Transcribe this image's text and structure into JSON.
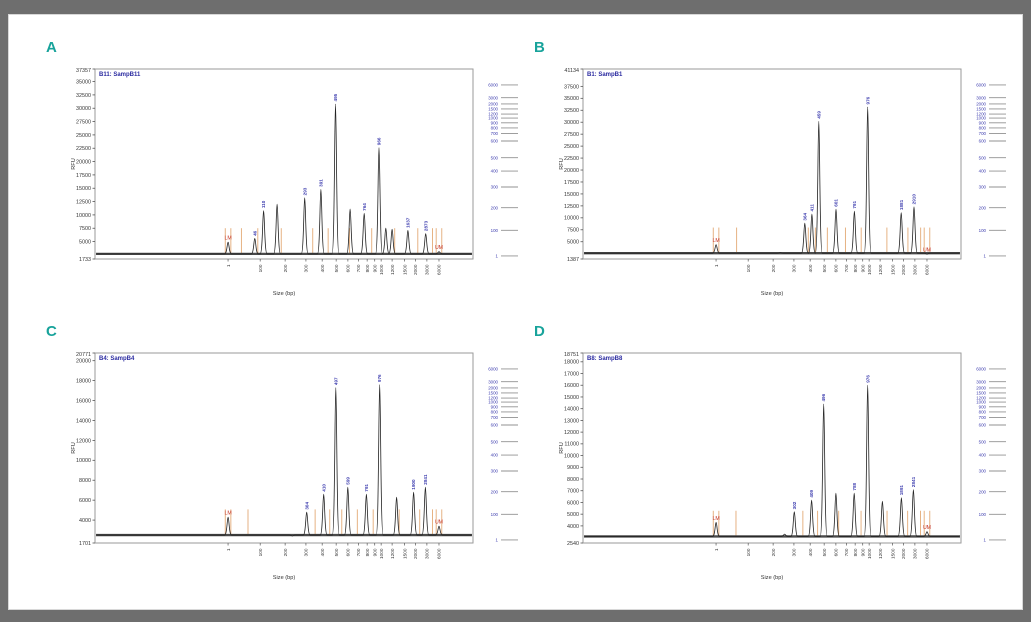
{
  "colors": {
    "frame": "#6e6e6e",
    "card_bg": "#ffffff",
    "panel_letter": "#18a39b",
    "title": "#2a2aa0",
    "peak_label": "#4040b0",
    "marker_label": "#c43425",
    "marker_line": "#e3aa76",
    "trace": "#232323",
    "baseline": "#4a4a4a",
    "plot_border": "#9a9a9a",
    "tick_text": "#333333",
    "ladder_label": "#4040b0",
    "ladder_line": "#909090",
    "band_color": "#1f1f1f"
  },
  "axes": {
    "x_label": "Size (bp)",
    "y_label": "RFU",
    "x_ticks": [
      1,
      100,
      200,
      300,
      400,
      500,
      600,
      700,
      800,
      900,
      1000,
      1200,
      1500,
      2000,
      3000,
      6000
    ]
  },
  "ladder": {
    "sizes": [
      6000,
      3000,
      2000,
      1500,
      1200,
      1000,
      900,
      800,
      700,
      600,
      500,
      400,
      300,
      200,
      100,
      1
    ]
  },
  "chart_data": [
    {
      "type": "line",
      "panel_letter": "A",
      "title": "B11: SampB11",
      "xlabel": "Size (bp)",
      "ylabel": "RFU",
      "ylim": [
        1733,
        37357
      ],
      "y_top_label": 37357,
      "y_bottom_label": 1733,
      "y_ticks": [
        35000,
        32500,
        30000,
        27500,
        25000,
        22500,
        20000,
        17500,
        15000,
        12500,
        10000,
        7500,
        5000
      ],
      "baseline_rfu": 2700,
      "lower_marker": {
        "label": "LM",
        "size": 1,
        "rfu": 4900
      },
      "upper_marker": {
        "label": "UM",
        "size": 6000,
        "rfu": 3100
      },
      "peaks": [
        {
          "size": 46,
          "label": "46",
          "rfu": 5600
        },
        {
          "size": 110,
          "label": "110",
          "rfu": 10800
        },
        {
          "size": 160,
          "label": "",
          "rfu": 12000
        },
        {
          "size": 293,
          "label": "293",
          "rfu": 13200
        },
        {
          "size": 391,
          "label": "391",
          "rfu": 14800
        },
        {
          "size": 495,
          "label": "495",
          "rfu": 30800
        },
        {
          "size": 620,
          "label": "",
          "rfu": 11100
        },
        {
          "size": 764,
          "label": "764",
          "rfu": 10300
        },
        {
          "size": 966,
          "label": "966",
          "rfu": 22600
        },
        {
          "size": 1080,
          "label": "",
          "rfu": 7500
        },
        {
          "size": 1200,
          "label": "",
          "rfu": 7300
        },
        {
          "size": 1637,
          "label": "1637",
          "rfu": 7100
        },
        {
          "size": 2873,
          "label": "2873",
          "rfu": 6500
        }
      ]
    },
    {
      "type": "line",
      "panel_letter": "B",
      "title": "B1: SampB1",
      "xlabel": "Size (bp)",
      "ylabel": "RFU",
      "ylim": [
        1387,
        41134
      ],
      "y_top_label": 41134,
      "y_bottom_label": 1387,
      "y_ticks": [
        37500,
        35000,
        32500,
        30000,
        27500,
        25000,
        22500,
        20000,
        17500,
        15000,
        12500,
        10000,
        7500,
        5000
      ],
      "baseline_rfu": 2600,
      "lower_marker": {
        "label": "LM",
        "size": 1,
        "rfu": 4400
      },
      "upper_marker": {
        "label": "UM",
        "size": 6000,
        "rfu": 2400
      },
      "peaks": [
        {
          "size": 230,
          "label": "",
          "rfu": 2700
        },
        {
          "size": 364,
          "label": "364",
          "rfu": 8900
        },
        {
          "size": 411,
          "label": "411",
          "rfu": 10800
        },
        {
          "size": 459,
          "label": "459",
          "rfu": 30200
        },
        {
          "size": 601,
          "label": "601",
          "rfu": 11800
        },
        {
          "size": 791,
          "label": "791",
          "rfu": 11400
        },
        {
          "size": 976,
          "label": "976",
          "rfu": 33200
        },
        {
          "size": 1881,
          "label": "1881",
          "rfu": 11100
        },
        {
          "size": 2910,
          "label": "2910",
          "rfu": 12300
        }
      ]
    },
    {
      "type": "line",
      "panel_letter": "C",
      "title": "B4: SampB4",
      "xlabel": "Size (bp)",
      "ylabel": "RFU",
      "ylim": [
        1701,
        20771
      ],
      "y_top_label": 20771,
      "y_bottom_label": 1701,
      "y_ticks": [
        20000,
        18000,
        16000,
        14000,
        12000,
        10000,
        8000,
        6000,
        4000
      ],
      "baseline_rfu": 2500,
      "lower_marker": {
        "label": "LM",
        "size": 1,
        "rfu": 4300
      },
      "upper_marker": {
        "label": "UM",
        "size": 6000,
        "rfu": 3400
      },
      "peaks": [
        {
          "size": 230,
          "label": "",
          "rfu": 2400
        },
        {
          "size": 304,
          "label": "304",
          "rfu": 4800
        },
        {
          "size": 410,
          "label": "410",
          "rfu": 6600
        },
        {
          "size": 497,
          "label": "497",
          "rfu": 17300
        },
        {
          "size": 599,
          "label": "599",
          "rfu": 7300
        },
        {
          "size": 791,
          "label": "791",
          "rfu": 6600
        },
        {
          "size": 976,
          "label": "976",
          "rfu": 17600
        },
        {
          "size": 1300,
          "label": "",
          "rfu": 6300
        },
        {
          "size": 1900,
          "label": "1900",
          "rfu": 6800
        },
        {
          "size": 2841,
          "label": "2841",
          "rfu": 7300
        }
      ]
    },
    {
      "type": "line",
      "panel_letter": "D",
      "title": "B8: SampB8",
      "xlabel": "Size (bp)",
      "ylabel": "RFU",
      "ylim": [
        2540,
        18751
      ],
      "y_top_label": 18751,
      "y_bottom_label": 2540,
      "y_ticks": [
        18000,
        17000,
        16000,
        15000,
        14000,
        13000,
        12000,
        11000,
        10000,
        9000,
        8000,
        7000,
        6000,
        5000,
        4000
      ],
      "baseline_rfu": 3100,
      "lower_marker": {
        "label": "LM",
        "size": 1,
        "rfu": 4300
      },
      "upper_marker": {
        "label": "UM",
        "size": 6000,
        "rfu": 3500
      },
      "peaks": [
        {
          "size": 250,
          "label": "",
          "rfu": 3300
        },
        {
          "size": 302,
          "label": "302",
          "rfu": 5200
        },
        {
          "size": 409,
          "label": "409",
          "rfu": 6200
        },
        {
          "size": 496,
          "label": "496",
          "rfu": 14400
        },
        {
          "size": 600,
          "label": "",
          "rfu": 6800
        },
        {
          "size": 788,
          "label": "788",
          "rfu": 6800
        },
        {
          "size": 976,
          "label": "976",
          "rfu": 16000
        },
        {
          "size": 1250,
          "label": "",
          "rfu": 6100
        },
        {
          "size": 1891,
          "label": "1891",
          "rfu": 6400
        },
        {
          "size": 2841,
          "label": "2841",
          "rfu": 7100
        }
      ]
    }
  ]
}
